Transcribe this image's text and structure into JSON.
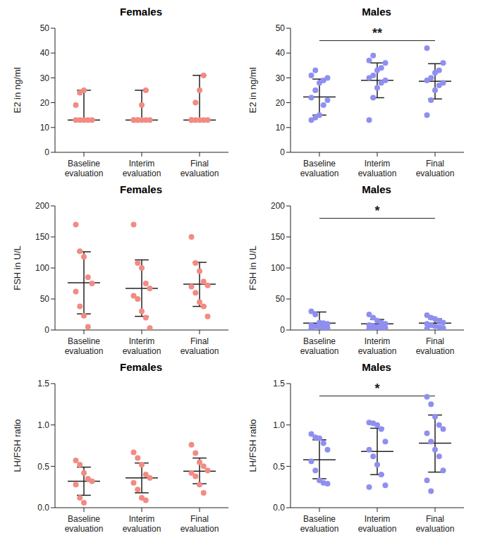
{
  "chart_data": [
    {
      "type": "scatter",
      "title": "Females",
      "y_label": "E2 in ng/ml",
      "color": "#f28b82",
      "categories": [
        "Baseline evaluation",
        "Interim evaluation",
        "Final evaluation"
      ],
      "ylim": [
        0,
        50
      ],
      "yticks": [
        0,
        10,
        20,
        30,
        40,
        50
      ],
      "points": [
        [
          13,
          13,
          13,
          13,
          13,
          19,
          24,
          25
        ],
        [
          13,
          13,
          13,
          13,
          13,
          13,
          13,
          19,
          25
        ],
        [
          13,
          13,
          13,
          13,
          13,
          13,
          20,
          25,
          31
        ]
      ],
      "error_bars": [
        {
          "center": 13,
          "low": 13,
          "high": 25
        },
        {
          "center": 13,
          "low": 13,
          "high": 25
        },
        {
          "center": 13,
          "low": 13,
          "high": 31
        }
      ],
      "annotations": []
    },
    {
      "type": "scatter",
      "title": "Males",
      "y_label": "E2 in ng/ml",
      "color": "#8f8ff0",
      "categories": [
        "Baseline evaluation",
        "Interim evaluation",
        "Final evaluation"
      ],
      "ylim": [
        0,
        50
      ],
      "yticks": [
        0,
        10,
        20,
        30,
        40,
        50
      ],
      "points": [
        [
          13,
          14,
          15,
          19,
          21,
          22,
          25,
          28,
          29,
          30,
          31,
          33
        ],
        [
          13,
          22,
          26,
          28,
          29,
          30,
          31,
          33,
          34,
          36,
          37,
          39
        ],
        [
          15,
          21,
          25,
          27,
          28,
          29,
          30,
          32,
          33,
          36,
          42
        ]
      ],
      "error_bars": [
        {
          "center": 22.3,
          "low": 15,
          "high": 29.5
        },
        {
          "center": 29,
          "low": 22,
          "high": 36
        },
        {
          "center": 28.6,
          "low": 21.5,
          "high": 35.7
        }
      ],
      "annotations": [
        {
          "from": "Baseline evaluation",
          "to": "Final evaluation",
          "y": 45,
          "label": "**"
        }
      ]
    },
    {
      "type": "scatter",
      "title": "Females",
      "y_label": "FSH in U/L",
      "color": "#f28b82",
      "categories": [
        "Baseline evaluation",
        "Interim evaluation",
        "Final evaluation"
      ],
      "ylim": [
        0,
        200
      ],
      "yticks": [
        0,
        50,
        100,
        150,
        200
      ],
      "points": [
        [
          170,
          127,
          118,
          85,
          75,
          62,
          38,
          23,
          5
        ],
        [
          170,
          108,
          100,
          75,
          67,
          55,
          50,
          30,
          20,
          3
        ],
        [
          150,
          108,
          95,
          78,
          72,
          70,
          60,
          45,
          38,
          22
        ]
      ],
      "error_bars": [
        {
          "center": 76,
          "low": 26,
          "high": 126
        },
        {
          "center": 67,
          "low": 22,
          "high": 113
        },
        {
          "center": 74,
          "low": 38,
          "high": 109
        }
      ],
      "annotations": []
    },
    {
      "type": "scatter",
      "title": "Males",
      "y_label": "FSH in U/L",
      "color": "#8f8ff0",
      "categories": [
        "Baseline evaluation",
        "Interim evaluation",
        "Final evaluation"
      ],
      "ylim": [
        0,
        200
      ],
      "yticks": [
        0,
        50,
        100,
        150,
        200
      ],
      "points": [
        [
          30,
          25,
          12,
          11,
          10,
          8,
          6,
          5,
          4,
          3,
          2
        ],
        [
          25,
          20,
          15,
          12,
          10,
          8,
          6,
          5,
          4,
          3,
          2,
          1
        ],
        [
          24,
          20,
          18,
          15,
          12,
          10,
          8,
          6,
          5,
          3,
          2
        ]
      ],
      "error_bars": [
        {
          "center": 11,
          "low": 3,
          "high": 29
        },
        {
          "center": 10,
          "low": 4,
          "high": 17
        },
        {
          "center": 11,
          "low": 5,
          "high": 18
        }
      ],
      "annotations": [
        {
          "from": "Baseline evaluation",
          "to": "Final evaluation",
          "y": 180,
          "label": "*"
        }
      ]
    },
    {
      "type": "scatter",
      "title": "Females",
      "y_label": "LH/FSH ratio",
      "color": "#f28b82",
      "categories": [
        "Baseline evaluation",
        "Interim evaluation",
        "Final evaluation"
      ],
      "ylim": [
        0,
        1.5
      ],
      "yticks": [
        {
          "value": 0,
          "label": "0.0"
        },
        {
          "value": 0.5,
          "label": "0.5"
        },
        {
          "value": 1,
          "label": "1.0"
        },
        {
          "value": 1.5,
          "label": "1.5"
        }
      ],
      "points": [
        [
          0.57,
          0.52,
          0.42,
          0.35,
          0.32,
          0.28,
          0.12,
          0.06
        ],
        [
          0.67,
          0.6,
          0.52,
          0.4,
          0.36,
          0.3,
          0.22,
          0.12,
          0.09
        ],
        [
          0.76,
          0.66,
          0.55,
          0.5,
          0.45,
          0.42,
          0.38,
          0.28,
          0.18
        ]
      ],
      "error_bars": [
        {
          "center": 0.32,
          "low": 0.15,
          "high": 0.49
        },
        {
          "center": 0.36,
          "low": 0.18,
          "high": 0.54
        },
        {
          "center": 0.44,
          "low": 0.29,
          "high": 0.6
        }
      ],
      "annotations": []
    },
    {
      "type": "scatter",
      "title": "Males",
      "y_label": "LH/FSH ratio",
      "color": "#8f8ff0",
      "categories": [
        "Baseline evaluation",
        "Interim evaluation",
        "Final evaluation"
      ],
      "ylim": [
        0,
        1.5
      ],
      "yticks": [
        {
          "value": 0,
          "label": "0.0"
        },
        {
          "value": 0.5,
          "label": "0.5"
        },
        {
          "value": 1,
          "label": "1.0"
        },
        {
          "value": 1.5,
          "label": "1.5"
        }
      ],
      "points": [
        [
          0.89,
          0.85,
          0.84,
          0.78,
          0.7,
          0.56,
          0.45,
          0.33,
          0.3,
          0.29
        ],
        [
          1.03,
          1.02,
          1.0,
          0.95,
          0.8,
          0.7,
          0.62,
          0.52,
          0.4,
          0.27,
          0.25
        ],
        [
          1.34,
          1.25,
          1.1,
          1.0,
          0.95,
          0.9,
          0.8,
          0.7,
          0.62,
          0.45,
          0.33,
          0.2
        ]
      ],
      "error_bars": [
        {
          "center": 0.58,
          "low": 0.35,
          "high": 0.82
        },
        {
          "center": 0.68,
          "low": 0.4,
          "high": 0.96
        },
        {
          "center": 0.78,
          "low": 0.43,
          "high": 1.12
        }
      ],
      "annotations": [
        {
          "from": "Baseline evaluation",
          "to": "Final evaluation",
          "y": 1.35,
          "label": "*"
        }
      ]
    }
  ]
}
